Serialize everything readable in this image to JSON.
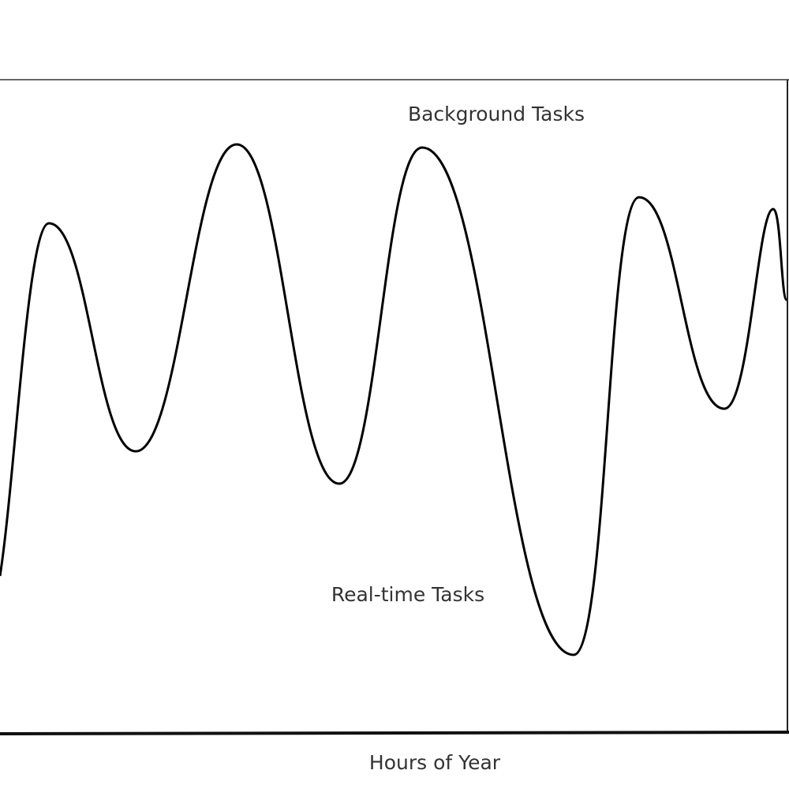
{
  "labels": {
    "upper": "Background Tasks",
    "lower": "Real-time Tasks"
  },
  "x_axis": {
    "label": "Hours of Year"
  }
}
